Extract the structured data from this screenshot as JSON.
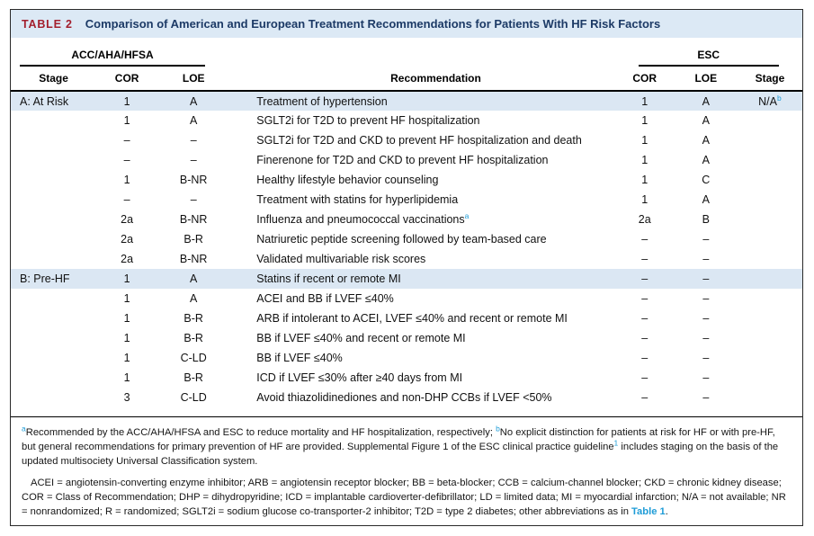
{
  "colors": {
    "accent_red": "#a31f2d",
    "title_navy": "#1c3a66",
    "band_blue": "#dce9f5",
    "row_highlight_blue": "#dbe7f3",
    "link_blue": "#1e9cd7"
  },
  "header": {
    "label": "TABLE 2",
    "title": "Comparison of American and European Treatment Recommendations for Patients With HF Risk Factors"
  },
  "table": {
    "columns": {
      "group_left": "ACC/AHA/HFSA",
      "group_right": "ESC",
      "headers": [
        "Stage",
        "COR",
        "LOE",
        "Recommendation",
        "COR",
        "LOE",
        "Stage"
      ]
    },
    "rows": [
      {
        "stage": "A: At Risk",
        "acc_cor": "1",
        "acc_loe": "A",
        "rec": "Treatment of hypertension",
        "esc_cor": "1",
        "esc_loe": "A",
        "esc_stage": "N/A",
        "esc_stage_sup": "b",
        "highlight": true
      },
      {
        "stage": "",
        "acc_cor": "1",
        "acc_loe": "A",
        "rec": "SGLT2i for T2D to prevent HF hospitalization",
        "esc_cor": "1",
        "esc_loe": "A",
        "esc_stage": "",
        "highlight": false
      },
      {
        "stage": "",
        "acc_cor": "–",
        "acc_loe": "–",
        "rec": "SGLT2i for T2D and CKD to prevent HF hospitalization and death",
        "esc_cor": "1",
        "esc_loe": "A",
        "esc_stage": "",
        "highlight": false
      },
      {
        "stage": "",
        "acc_cor": "–",
        "acc_loe": "–",
        "rec": "Finerenone for T2D and CKD to prevent HF hospitalization",
        "esc_cor": "1",
        "esc_loe": "A",
        "esc_stage": "",
        "highlight": false
      },
      {
        "stage": "",
        "acc_cor": "1",
        "acc_loe": "B-NR",
        "rec": "Healthy lifestyle behavior counseling",
        "esc_cor": "1",
        "esc_loe": "C",
        "esc_stage": "",
        "highlight": false
      },
      {
        "stage": "",
        "acc_cor": "–",
        "acc_loe": "–",
        "rec": "Treatment with statins for hyperlipidemia",
        "esc_cor": "1",
        "esc_loe": "A",
        "esc_stage": "",
        "highlight": false
      },
      {
        "stage": "",
        "acc_cor": "2a",
        "acc_loe": "B-NR",
        "rec": "Influenza and pneumococcal vaccinations",
        "rec_sup": "a",
        "esc_cor": "2a",
        "esc_loe": "B",
        "esc_stage": "",
        "highlight": false
      },
      {
        "stage": "",
        "acc_cor": "2a",
        "acc_loe": "B-R",
        "rec": "Natriuretic peptide screening followed by team-based care",
        "esc_cor": "–",
        "esc_loe": "–",
        "esc_stage": "",
        "highlight": false
      },
      {
        "stage": "",
        "acc_cor": "2a",
        "acc_loe": "B-NR",
        "rec": "Validated multivariable risk scores",
        "esc_cor": "–",
        "esc_loe": "–",
        "esc_stage": "",
        "highlight": false
      },
      {
        "stage": "B: Pre-HF",
        "acc_cor": "1",
        "acc_loe": "A",
        "rec": "Statins if recent or remote MI",
        "esc_cor": "–",
        "esc_loe": "–",
        "esc_stage": "",
        "highlight": true
      },
      {
        "stage": "",
        "acc_cor": "1",
        "acc_loe": "A",
        "rec": "ACEI and BB if LVEF ≤40%",
        "esc_cor": "–",
        "esc_loe": "–",
        "esc_stage": "",
        "highlight": false
      },
      {
        "stage": "",
        "acc_cor": "1",
        "acc_loe": "B-R",
        "rec": "ARB if intolerant to ACEI, LVEF ≤40% and recent or remote MI",
        "esc_cor": "–",
        "esc_loe": "–",
        "esc_stage": "",
        "highlight": false
      },
      {
        "stage": "",
        "acc_cor": "1",
        "acc_loe": "B-R",
        "rec": "BB if LVEF ≤40% and recent or remote MI",
        "esc_cor": "–",
        "esc_loe": "–",
        "esc_stage": "",
        "highlight": false
      },
      {
        "stage": "",
        "acc_cor": "1",
        "acc_loe": "C-LD",
        "rec": "BB if LVEF ≤40%",
        "esc_cor": "–",
        "esc_loe": "–",
        "esc_stage": "",
        "highlight": false
      },
      {
        "stage": "",
        "acc_cor": "1",
        "acc_loe": "B-R",
        "rec": "ICD if LVEF ≤30% after ≥40 days from MI",
        "esc_cor": "–",
        "esc_loe": "–",
        "esc_stage": "",
        "highlight": false
      },
      {
        "stage": "",
        "acc_cor": "3",
        "acc_loe": "C-LD",
        "rec": "Avoid thiazolidinediones and non-DHP CCBs if LVEF <50%",
        "esc_cor": "–",
        "esc_loe": "–",
        "esc_stage": "",
        "highlight": false
      }
    ]
  },
  "footnotes": {
    "para1": [
      {
        "t": "a",
        "s": "sup"
      },
      {
        "t": "Recommended by the ACC/AHA/HFSA and ESC to reduce mortality and HF hospitalization, respectively; ",
        "s": "n"
      },
      {
        "t": "b",
        "s": "sup"
      },
      {
        "t": "No explicit distinction for patients at risk for HF or with pre-HF, but general recommendations for primary prevention of HF are provided. Supplemental Figure 1 of the ESC clinical practice guideline",
        "s": "n"
      },
      {
        "t": "1",
        "s": "sup"
      },
      {
        "t": " includes staging on the basis of the updated multisociety Universal Classification system.",
        "s": "n"
      }
    ],
    "para2": [
      {
        "t": "ACEI = angiotensin-converting enzyme inhibitor; ARB = angiotensin receptor blocker; BB = beta-blocker; CCB = calcium-channel blocker; CKD = chronic kidney disease; COR = Class of Recommendation; DHP = dihydropyridine; ICD = implantable cardioverter-defibrillator; LD = limited data; MI = myocardial infarction; N/A = not available; NR = nonrandomized; R = randomized; SGLT2i = sodium glucose co-transporter-2 inhibitor; T2D = type 2 diabetes; other abbreviations as in ",
        "s": "n"
      },
      {
        "t": "Table 1",
        "s": "link"
      },
      {
        "t": ".",
        "s": "n"
      }
    ]
  }
}
